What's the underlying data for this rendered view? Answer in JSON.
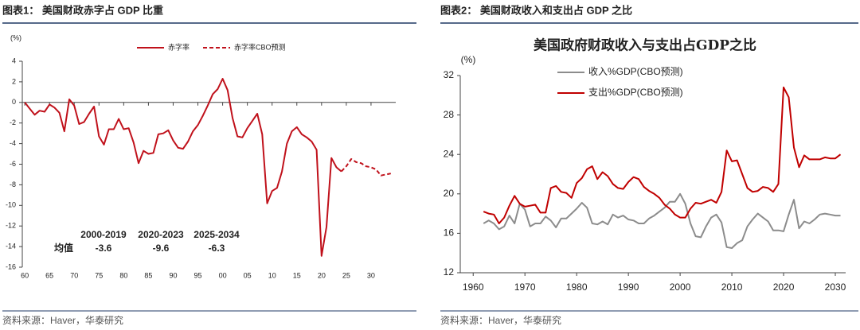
{
  "chart_data": [
    {
      "type": "line",
      "header": "图表1：  美国财政赤字占 GDP 比重",
      "source": "资料来源：Haver，华泰研究",
      "ylabel": "(%)",
      "legend": "top-center",
      "x": [
        1960,
        1961,
        1962,
        1963,
        1964,
        1965,
        1966,
        1967,
        1968,
        1969,
        1970,
        1971,
        1972,
        1973,
        1974,
        1975,
        1976,
        1977,
        1978,
        1979,
        1980,
        1981,
        1982,
        1983,
        1984,
        1985,
        1986,
        1987,
        1988,
        1989,
        1990,
        1991,
        1992,
        1993,
        1994,
        1995,
        1996,
        1997,
        1998,
        1999,
        2000,
        2001,
        2002,
        2003,
        2004,
        2005,
        2006,
        2007,
        2008,
        2009,
        2010,
        2011,
        2012,
        2013,
        2014,
        2015,
        2016,
        2017,
        2018,
        2019,
        2020,
        2021,
        2022,
        2023,
        2024,
        2025,
        2026,
        2027,
        2028,
        2029,
        2030,
        2031,
        2032,
        2033,
        2034
      ],
      "series": [
        {
          "name": "赤字率",
          "color": "#c0111b",
          "line_style": "solid",
          "values": [
            0.0,
            -0.6,
            -1.2,
            -0.8,
            -0.9,
            -0.2,
            -0.5,
            -1.0,
            -2.8,
            0.3,
            -0.3,
            -2.1,
            -1.9,
            -1.1,
            -0.4,
            -3.3,
            -4.1,
            -2.6,
            -2.6,
            -1.6,
            -2.6,
            -2.5,
            -3.9,
            -5.9,
            -4.7,
            -5.0,
            -4.9,
            -3.1,
            -3.0,
            -2.7,
            -3.7,
            -4.4,
            -4.5,
            -3.8,
            -2.8,
            -2.2,
            -1.3,
            -0.3,
            0.8,
            1.3,
            2.3,
            1.2,
            -1.5,
            -3.3,
            -3.4,
            -2.5,
            -1.8,
            -1.1,
            -3.1,
            -9.8,
            -8.6,
            -8.3,
            -6.7,
            -4.0,
            -2.8,
            -2.4,
            -3.1,
            -3.4,
            -3.8,
            -4.6,
            -14.9,
            -12.1,
            -5.4,
            -6.3,
            -6.7,
            null,
            null,
            null,
            null,
            null,
            null,
            null,
            null,
            null,
            null
          ]
        },
        {
          "name": "赤字率CBO预测",
          "color": "#c0111b",
          "line_style": "dashed",
          "values": [
            null,
            null,
            null,
            null,
            null,
            null,
            null,
            null,
            null,
            null,
            null,
            null,
            null,
            null,
            null,
            null,
            null,
            null,
            null,
            null,
            null,
            null,
            null,
            null,
            null,
            null,
            null,
            null,
            null,
            null,
            null,
            null,
            null,
            null,
            null,
            null,
            null,
            null,
            null,
            null,
            null,
            null,
            null,
            null,
            null,
            null,
            null,
            null,
            null,
            null,
            null,
            null,
            null,
            null,
            null,
            null,
            null,
            null,
            null,
            null,
            null,
            null,
            null,
            null,
            -6.7,
            -6.2,
            -5.5,
            -5.8,
            -5.9,
            -6.2,
            -6.3,
            -6.5,
            -7.1,
            -7.0,
            -6.9
          ]
        }
      ],
      "xlim": [
        1959.5,
        2035
      ],
      "xticks": [
        {
          "value": 1960,
          "label": "60"
        },
        {
          "value": 1965,
          "label": "65"
        },
        {
          "value": 1970,
          "label": "70"
        },
        {
          "value": 1975,
          "label": "75"
        },
        {
          "value": 1980,
          "label": "80"
        },
        {
          "value": 1985,
          "label": "85"
        },
        {
          "value": 1990,
          "label": "90"
        },
        {
          "value": 1995,
          "label": "95"
        },
        {
          "value": 2000,
          "label": "00"
        },
        {
          "value": 2005,
          "label": "05"
        },
        {
          "value": 2010,
          "label": "10"
        },
        {
          "value": 2015,
          "label": "15"
        },
        {
          "value": 2020,
          "label": "20"
        },
        {
          "value": 2025,
          "label": "25"
        },
        {
          "value": 2030,
          "label": "30"
        }
      ],
      "ylim": [
        -16,
        4
      ],
      "yticks": [
        4,
        2,
        0,
        -2,
        -4,
        -6,
        -8,
        -10,
        -12,
        -14,
        -16
      ],
      "annotations": {
        "periods": [
          "2000-2019",
          "2020-2023",
          "2025-2034"
        ],
        "label": "均值",
        "values": [
          -3.6,
          -9.6,
          -6.3
        ]
      }
    },
    {
      "type": "line",
      "header": "图表2：  美国财政收入和支出占 GDP 之比",
      "source": "资料来源：Haver，华泰研究",
      "title": "美国政府财政收入与支出占GDP之比",
      "ylabel": "(%)",
      "legend": "upper-left",
      "x": [
        1962,
        1963,
        1964,
        1965,
        1966,
        1967,
        1968,
        1969,
        1970,
        1971,
        1972,
        1973,
        1974,
        1975,
        1976,
        1977,
        1978,
        1979,
        1980,
        1981,
        1982,
        1983,
        1984,
        1985,
        1986,
        1987,
        1988,
        1989,
        1990,
        1991,
        1992,
        1993,
        1994,
        1995,
        1996,
        1997,
        1998,
        1999,
        2000,
        2001,
        2002,
        2003,
        2004,
        2005,
        2006,
        2007,
        2008,
        2009,
        2010,
        2011,
        2012,
        2013,
        2014,
        2015,
        2016,
        2017,
        2018,
        2019,
        2020,
        2021,
        2022,
        2023,
        2024,
        2025,
        2026,
        2027,
        2028,
        2029,
        2030,
        2031
      ],
      "series": [
        {
          "name": "收入%GDP(CBO预测)",
          "color": "#8c8c8c",
          "line_style": "solid",
          "values": [
            17.0,
            17.3,
            17.0,
            16.4,
            16.7,
            17.8,
            17.0,
            19.0,
            18.4,
            16.7,
            17.0,
            17.0,
            17.7,
            17.3,
            16.6,
            17.5,
            17.5,
            18.0,
            18.5,
            19.1,
            18.6,
            17.0,
            16.9,
            17.2,
            16.9,
            17.9,
            17.6,
            17.8,
            17.4,
            17.3,
            17.0,
            17.0,
            17.5,
            17.8,
            18.2,
            18.6,
            19.2,
            19.2,
            20.0,
            19.0,
            17.0,
            15.7,
            15.6,
            16.7,
            17.6,
            17.9,
            17.1,
            14.6,
            14.5,
            15.0,
            15.3,
            16.7,
            17.4,
            18.0,
            17.6,
            17.2,
            16.3,
            16.3,
            16.2,
            17.9,
            19.4,
            16.5,
            17.2,
            17.0,
            17.4,
            17.9,
            18.0,
            17.9,
            17.8,
            17.8
          ]
        },
        {
          "name": "支出%GDP(CBO预测)",
          "color": "#c00000",
          "line_style": "solid",
          "values": [
            18.2,
            18.0,
            17.9,
            17.0,
            17.6,
            18.8,
            19.8,
            19.0,
            18.7,
            18.8,
            18.9,
            18.1,
            18.1,
            20.6,
            20.8,
            20.2,
            20.1,
            19.6,
            21.1,
            21.6,
            22.5,
            22.8,
            21.5,
            22.2,
            21.8,
            21.0,
            20.6,
            20.5,
            21.2,
            21.7,
            21.5,
            20.7,
            20.3,
            20.0,
            19.6,
            18.9,
            18.5,
            17.9,
            17.6,
            17.6,
            18.5,
            19.1,
            19.0,
            19.2,
            19.4,
            19.1,
            20.2,
            24.4,
            23.3,
            23.4,
            22.0,
            20.6,
            20.2,
            20.3,
            20.7,
            20.6,
            20.2,
            21.0,
            30.8,
            29.8,
            24.7,
            22.7,
            23.9,
            23.5,
            23.5,
            23.5,
            23.7,
            23.6,
            23.6,
            24.0
          ]
        }
      ],
      "xlim": [
        1957.5,
        2032
      ],
      "xticks": [
        1960,
        1970,
        1980,
        1990,
        2000,
        2010,
        2020,
        2030
      ],
      "ylim": [
        12,
        32
      ],
      "yticks": [
        12,
        16,
        20,
        24,
        28,
        32
      ]
    }
  ]
}
